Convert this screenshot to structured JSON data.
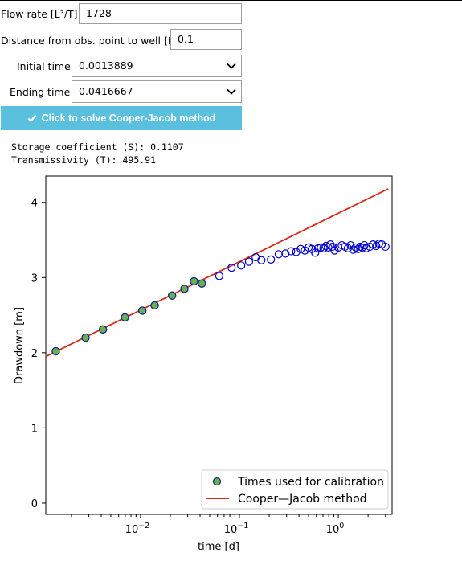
{
  "form": {
    "flow_rate_label": "Flow rate [L³/T]:",
    "flow_rate_value": "1728",
    "distance_label": "Distance from obs. point to well [L]:",
    "distance_value": "0.1",
    "initial_time_label": "Initial time",
    "initial_time_value": "0.0013889",
    "ending_time_label": "Ending time",
    "ending_time_value": "0.0416667",
    "solve_button_label": "Click to solve Cooper-Jacob method",
    "solve_button_icon": "check-icon"
  },
  "output": {
    "storage_line": "Storage coefficient (S): 0.1107",
    "transmissivity_line": "Transmissivity (T): 495.91"
  },
  "chart_data": {
    "type": "scatter",
    "xlabel": "time [d]",
    "ylabel": "Drawdown [m]",
    "xscale": "log",
    "xlim": [
      0.0011,
      3.5
    ],
    "ylim": [
      -0.15,
      4.35
    ],
    "x_tick_labels": [
      {
        "value": 0.01,
        "base": "10",
        "exp": "−2"
      },
      {
        "value": 0.1,
        "base": "10",
        "exp": "−1"
      },
      {
        "value": 1,
        "base": "10",
        "exp": "0"
      }
    ],
    "y_ticks": [
      0,
      1,
      2,
      3,
      4
    ],
    "y_tick_labels": [
      "0",
      "1",
      "2",
      "3",
      "4"
    ],
    "legend_position": "lower-right",
    "legend": {
      "calibration": "Times used for calibration",
      "method": "Cooper—Jacob method"
    },
    "colors": {
      "open_marker": "#0000cc",
      "calibration_fill": "#6ab04c",
      "calibration_edge": "#1a2b8c",
      "line": "#d62c1a"
    },
    "line": {
      "x": [
        0.0011,
        3.2
      ],
      "y": [
        1.95,
        4.18
      ]
    },
    "calibration_points": {
      "x": [
        0.0013889,
        0.0027778,
        0.0041667,
        0.0069444,
        0.0104167,
        0.0138889,
        0.0208333,
        0.0277778,
        0.0347222,
        0.0416667
      ],
      "y": [
        2.02,
        2.2,
        2.31,
        2.47,
        2.56,
        2.63,
        2.76,
        2.85,
        2.95,
        2.92
      ]
    },
    "observations": {
      "x": [
        0.0013889,
        0.0027778,
        0.0041667,
        0.0069444,
        0.0104167,
        0.0138889,
        0.0208333,
        0.0277778,
        0.0347222,
        0.0416667,
        0.0625,
        0.0833,
        0.1042,
        0.125,
        0.1458,
        0.1667,
        0.2083,
        0.25,
        0.2917,
        0.3333,
        0.375,
        0.4167,
        0.4583,
        0.5,
        0.5417,
        0.5833,
        0.625,
        0.6667,
        0.7083,
        0.75,
        0.7917,
        0.8333,
        0.875,
        0.9167,
        1.0,
        1.0833,
        1.1667,
        1.25,
        1.3333,
        1.4167,
        1.5,
        1.5833,
        1.6667,
        1.75,
        1.8333,
        1.9167,
        2.0833,
        2.25,
        2.4167,
        2.5833,
        2.75,
        3.0
      ],
      "y": [
        2.02,
        2.2,
        2.31,
        2.47,
        2.56,
        2.63,
        2.76,
        2.85,
        2.95,
        2.92,
        3.02,
        3.13,
        3.16,
        3.21,
        3.27,
        3.23,
        3.24,
        3.31,
        3.32,
        3.35,
        3.34,
        3.38,
        3.36,
        3.4,
        3.38,
        3.33,
        3.39,
        3.4,
        3.39,
        3.42,
        3.4,
        3.44,
        3.41,
        3.36,
        3.4,
        3.43,
        3.41,
        3.39,
        3.43,
        3.37,
        3.4,
        3.38,
        3.41,
        3.4,
        3.43,
        3.39,
        3.41,
        3.44,
        3.42,
        3.45,
        3.44,
        3.41
      ]
    }
  }
}
